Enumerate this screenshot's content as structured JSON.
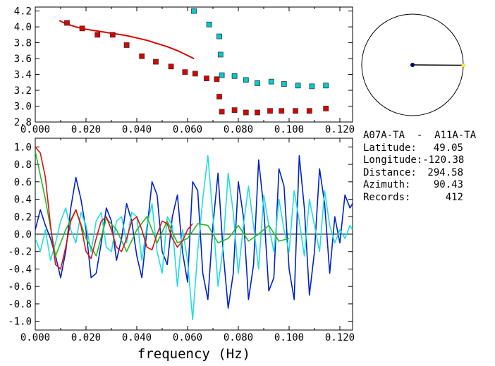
{
  "chart_data": [
    {
      "type": "scatter",
      "xlim": [
        0.0,
        0.125
      ],
      "ylim": [
        2.8,
        4.25
      ],
      "xticks": [
        "0.000",
        "0.020",
        "0.040",
        "0.060",
        "0.080",
        "0.100",
        "0.120"
      ],
      "xtick_values": [
        0.0,
        0.02,
        0.04,
        0.06,
        0.08,
        0.1,
        0.12
      ],
      "yticks": [
        "2.8",
        "3.0",
        "3.2",
        "3.4",
        "3.6",
        "3.8",
        "4.0",
        "4.2"
      ],
      "ytick_values": [
        2.8,
        3.0,
        3.2,
        3.4,
        3.6,
        3.8,
        4.0,
        4.2
      ],
      "grid": false,
      "series": [
        {
          "kind": "line",
          "color": "#dd0000",
          "x": [
            0.0095,
            0.012,
            0.016,
            0.02,
            0.024,
            0.028,
            0.032,
            0.036,
            0.04,
            0.044,
            0.048,
            0.052,
            0.056,
            0.06,
            0.0625
          ],
          "y": [
            4.08,
            4.04,
            4.0,
            3.97,
            3.95,
            3.93,
            3.91,
            3.89,
            3.86,
            3.83,
            3.79,
            3.75,
            3.7,
            3.64,
            3.6
          ]
        },
        {
          "kind": "points",
          "color": "#dd0000",
          "x": [
            0.0125,
            0.0185,
            0.0245,
            0.0305,
            0.036,
            0.042,
            0.0475,
            0.0535,
            0.059,
            0.063,
            0.0675,
            0.0715,
            0.0725,
            0.0735,
            0.0785,
            0.083,
            0.0875,
            0.0925,
            0.097,
            0.1025,
            0.108,
            0.1145
          ],
          "y": [
            4.05,
            3.98,
            3.9,
            3.9,
            3.77,
            3.63,
            3.56,
            3.5,
            3.43,
            3.41,
            3.35,
            3.34,
            3.12,
            2.93,
            2.95,
            2.92,
            2.92,
            2.94,
            2.94,
            2.94,
            2.94,
            2.97
          ]
        },
        {
          "kind": "points",
          "color": "#00cccc",
          "x": [
            0.0625,
            0.0685,
            0.0725,
            0.073,
            0.0735,
            0.0785,
            0.083,
            0.0875,
            0.093,
            0.098,
            0.1035,
            0.109,
            0.1145
          ],
          "y": [
            4.2,
            4.03,
            3.88,
            3.65,
            3.39,
            3.38,
            3.33,
            3.29,
            3.31,
            3.28,
            3.26,
            3.25,
            3.26
          ]
        }
      ]
    },
    {
      "type": "line",
      "xlabel": "frequency  (Hz)",
      "xlim": [
        0.0,
        0.125
      ],
      "ylim": [
        -1.1,
        1.1
      ],
      "xticks": [
        "0.000",
        "0.020",
        "0.040",
        "0.060",
        "0.080",
        "0.100",
        "0.120"
      ],
      "xtick_values": [
        0.0,
        0.02,
        0.04,
        0.06,
        0.08,
        0.1,
        0.12
      ],
      "yticks": [
        "-1.0",
        "-0.8",
        "-0.6",
        "-0.4",
        "-0.2",
        "0.0",
        "0.2",
        "0.4",
        "0.6",
        "0.8",
        "1.0"
      ],
      "ytick_values": [
        -1.0,
        -0.8,
        -0.6,
        -0.4,
        -0.2,
        0.0,
        0.2,
        0.4,
        0.6,
        0.8,
        1.0
      ],
      "zero_line": true,
      "grid": false,
      "series": [
        {
          "color": "#0022cc",
          "x": [
            0.0,
            0.002,
            0.004,
            0.006,
            0.008,
            0.01,
            0.012,
            0.014,
            0.016,
            0.018,
            0.02,
            0.022,
            0.024,
            0.026,
            0.028,
            0.03,
            0.032,
            0.034,
            0.036,
            0.038,
            0.04,
            0.042,
            0.044,
            0.046,
            0.048,
            0.05,
            0.052,
            0.054,
            0.056,
            0.058,
            0.06,
            0.062,
            0.064,
            0.066,
            0.068,
            0.07,
            0.072,
            0.074,
            0.076,
            0.078,
            0.08,
            0.082,
            0.084,
            0.086,
            0.088,
            0.09,
            0.092,
            0.094,
            0.096,
            0.098,
            0.1,
            0.102,
            0.104,
            0.106,
            0.108,
            0.11,
            0.112,
            0.114,
            0.116,
            0.118,
            0.12,
            0.122,
            0.124,
            0.125
          ],
          "y": [
            0.05,
            0.28,
            0.1,
            -0.05,
            -0.25,
            -0.5,
            -0.2,
            0.3,
            0.65,
            0.4,
            0.05,
            -0.5,
            -0.45,
            -0.1,
            0.3,
            0.15,
            -0.3,
            -0.05,
            0.35,
            0.15,
            -0.25,
            -0.5,
            0.05,
            0.6,
            0.45,
            -0.2,
            -0.35,
            0.2,
            0.45,
            -0.2,
            -0.55,
            0.6,
            0.5,
            -0.45,
            -0.75,
            0.1,
            0.7,
            -0.2,
            -0.85,
            -0.45,
            0.6,
            0.2,
            -0.75,
            -0.35,
            0.85,
            0.3,
            -0.65,
            -0.5,
            0.75,
            0.55,
            -0.4,
            -0.75,
            0.9,
            0.3,
            -0.7,
            -0.2,
            0.75,
            0.35,
            -0.45,
            0.2,
            -0.1,
            0.45,
            0.3,
            0.35
          ]
        },
        {
          "color": "#22dddd",
          "x": [
            0.0,
            0.002,
            0.004,
            0.006,
            0.008,
            0.01,
            0.012,
            0.014,
            0.016,
            0.018,
            0.02,
            0.022,
            0.024,
            0.026,
            0.028,
            0.03,
            0.032,
            0.034,
            0.036,
            0.038,
            0.04,
            0.042,
            0.044,
            0.046,
            0.048,
            0.05,
            0.052,
            0.054,
            0.056,
            0.058,
            0.06,
            0.062,
            0.064,
            0.066,
            0.068,
            0.07,
            0.072,
            0.074,
            0.076,
            0.078,
            0.08,
            0.082,
            0.084,
            0.086,
            0.088,
            0.09,
            0.092,
            0.094,
            0.096,
            0.098,
            0.1,
            0.102,
            0.104,
            0.106,
            0.108,
            0.11,
            0.112,
            0.114,
            0.116,
            0.118,
            0.12,
            0.122,
            0.124,
            0.125
          ],
          "y": [
            -0.05,
            -0.2,
            0.05,
            -0.3,
            -0.1,
            0.15,
            0.3,
            0.05,
            -0.1,
            0.25,
            0.1,
            -0.2,
            0.15,
            0.25,
            -0.15,
            -0.2,
            0.15,
            0.2,
            -0.1,
            0.25,
            0.2,
            -0.3,
            0.1,
            0.35,
            -0.2,
            -0.45,
            0.2,
            0.1,
            -0.6,
            0.05,
            -0.3,
            -0.98,
            -0.2,
            0.4,
            0.9,
            0.2,
            -0.6,
            -0.15,
            0.7,
            0.25,
            -0.45,
            0.1,
            0.55,
            0.1,
            -0.4,
            0.45,
            0.1,
            -0.2,
            0.4,
            0.05,
            -0.2,
            0.5,
            0.15,
            -0.25,
            0.4,
            0.1,
            -0.2,
            0.5,
            0.1,
            -0.1,
            0.05,
            -0.05,
            0.1,
            0.05
          ]
        },
        {
          "color": "#22bb22",
          "x": [
            0.0,
            0.004,
            0.008,
            0.012,
            0.016,
            0.02,
            0.024,
            0.028,
            0.032,
            0.036,
            0.04,
            0.044,
            0.048,
            0.052,
            0.056,
            0.06,
            0.064,
            0.068,
            0.072,
            0.076,
            0.08,
            0.084,
            0.088,
            0.092,
            0.096,
            0.1
          ],
          "y": [
            0.95,
            0.4,
            -0.25,
            0.05,
            0.28,
            -0.05,
            -0.25,
            0.18,
            0.05,
            -0.2,
            0.05,
            0.2,
            -0.1,
            0.15,
            -0.1,
            -0.05,
            0.12,
            0.1,
            -0.1,
            -0.05,
            0.1,
            -0.08,
            0.0,
            0.1,
            -0.08,
            -0.05
          ]
        },
        {
          "color": "#dd1111",
          "x": [
            0.0,
            0.002,
            0.004,
            0.006,
            0.008,
            0.01,
            0.012,
            0.014,
            0.016,
            0.018,
            0.02,
            0.022,
            0.024,
            0.026,
            0.028,
            0.03,
            0.032,
            0.034,
            0.036,
            0.038,
            0.04,
            0.042,
            0.044,
            0.046,
            0.048,
            0.05,
            0.052,
            0.054,
            0.056,
            0.058,
            0.06,
            0.062
          ],
          "y": [
            1.0,
            0.93,
            0.65,
            0.1,
            -0.35,
            -0.4,
            -0.15,
            0.15,
            0.28,
            0.1,
            -0.2,
            -0.28,
            -0.05,
            0.15,
            0.2,
            0.05,
            -0.15,
            -0.2,
            -0.05,
            0.15,
            0.2,
            0.05,
            -0.15,
            -0.18,
            0.0,
            0.15,
            0.12,
            -0.05,
            -0.15,
            -0.08,
            0.05,
            0.12
          ]
        }
      ]
    }
  ],
  "azimuth_circle": {
    "azimuth_deg": 90.43,
    "center_color": "#000066",
    "end_color": "#ffff00"
  },
  "info": {
    "title": "A07A-TA  -  A11A-TA",
    "rows": [
      {
        "label": "Latitude:",
        "value": "49.05"
      },
      {
        "label": "Longitude:",
        "value": "-120.38"
      },
      {
        "label": "Distance:",
        "value": "294.58"
      },
      {
        "label": "Azimuth:",
        "value": "90.43"
      },
      {
        "label": "Records:",
        "value": "412"
      }
    ]
  }
}
